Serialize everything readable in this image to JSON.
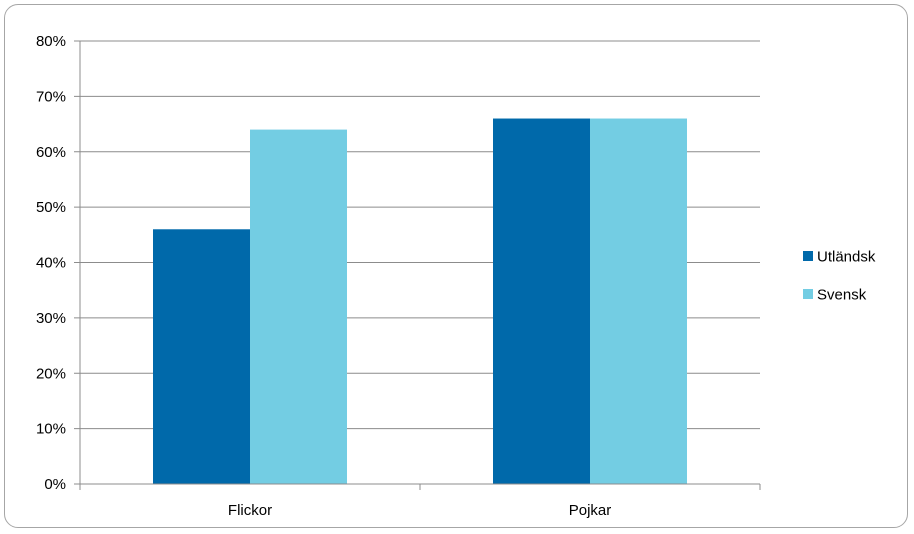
{
  "chart_data": {
    "type": "bar",
    "categories": [
      "Flickor",
      "Pojkar"
    ],
    "series": [
      {
        "name": "Utländsk",
        "values": [
          0.46,
          0.66
        ],
        "color": "#0069aa"
      },
      {
        "name": "Svensk",
        "values": [
          0.64,
          0.66
        ],
        "color": "#73cde3"
      }
    ],
    "title": "",
    "xlabel": "",
    "ylabel": "",
    "ylim": [
      0,
      0.8
    ],
    "yticks": [
      "0%",
      "10%",
      "20%",
      "30%",
      "40%",
      "50%",
      "60%",
      "70%",
      "80%"
    ],
    "grid": true,
    "legend": "right"
  }
}
